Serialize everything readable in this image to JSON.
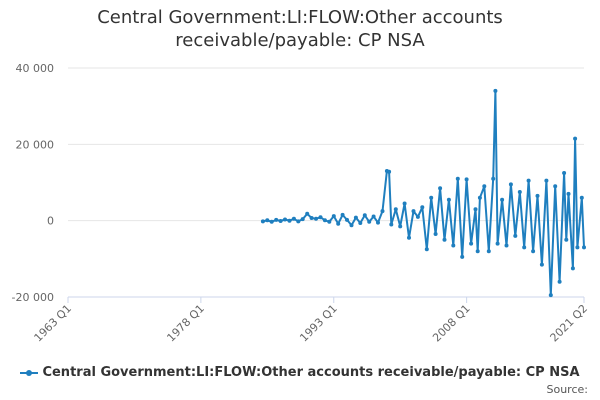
{
  "title_line1": "Central Government:LI:FLOW:Other accounts",
  "title_line2": "receivable/payable: CP NSA",
  "source_label": "Source:",
  "series_color": "#1f7fbf",
  "chart_data": {
    "type": "line",
    "title": "Central Government:LI:FLOW:Other accounts receivable/payable: CP NSA",
    "xlabel": "",
    "ylabel": "",
    "ylim": [
      -20000,
      40000
    ],
    "xlim": [
      "1963 Q1",
      "2021 Q2"
    ],
    "y_ticks": [
      "40 000",
      "20 000",
      "0",
      "-20 000"
    ],
    "y_tick_values": [
      40000,
      20000,
      0,
      -20000
    ],
    "x_ticks": [
      "1963 Q1",
      "1978 Q1",
      "1993 Q1",
      "2008 Q1",
      "2021 Q2"
    ],
    "grid": true,
    "legend_position": "bottom-center",
    "series": [
      {
        "name": "Central Government:LI:FLOW:Other accounts receivable/payable: CP NSA",
        "x": [
          "1985 Q1",
          "1985 Q3",
          "1986 Q1",
          "1986 Q3",
          "1987 Q1",
          "1987 Q3",
          "1988 Q1",
          "1988 Q3",
          "1989 Q1",
          "1989 Q3",
          "1990 Q1",
          "1990 Q3",
          "1991 Q1",
          "1991 Q3",
          "1992 Q1",
          "1992 Q3",
          "1993 Q1",
          "1993 Q3",
          "1994 Q1",
          "1994 Q3",
          "1995 Q1",
          "1995 Q3",
          "1996 Q1",
          "1996 Q3",
          "1997 Q1",
          "1997 Q3",
          "1998 Q1",
          "1998 Q3",
          "1999 Q1",
          "1999 Q2",
          "1999 Q3",
          "2000 Q1",
          "2000 Q3",
          "2001 Q1",
          "2001 Q3",
          "2002 Q1",
          "2002 Q3",
          "2003 Q1",
          "2003 Q3",
          "2004 Q1",
          "2004 Q3",
          "2005 Q1",
          "2005 Q3",
          "2006 Q1",
          "2006 Q3",
          "2007 Q1",
          "2007 Q3",
          "2008 Q1",
          "2008 Q3",
          "2009 Q1",
          "2009 Q2",
          "2009 Q3",
          "2010 Q1",
          "2010 Q3",
          "2011 Q1",
          "2011 Q2",
          "2011 Q3",
          "2012 Q1",
          "2012 Q3",
          "2013 Q1",
          "2013 Q3",
          "2014 Q1",
          "2014 Q3",
          "2015 Q1",
          "2015 Q3",
          "2016 Q1",
          "2016 Q3",
          "2017 Q1",
          "2017 Q3",
          "2018 Q1",
          "2018 Q3",
          "2019 Q1",
          "2019 Q2",
          "2019 Q3",
          "2020 Q1",
          "2020 Q2",
          "2020 Q3",
          "2021 Q1",
          "2021 Q2"
        ],
        "values": [
          -200,
          100,
          -300,
          200,
          -100,
          300,
          0,
          500,
          -200,
          400,
          1800,
          700,
          500,
          900,
          100,
          -300,
          1200,
          -800,
          1500,
          200,
          -1200,
          800,
          -600,
          1400,
          -300,
          1100,
          -500,
          2500,
          13000,
          12800,
          -1000,
          3000,
          -1500,
          4500,
          -4500,
          2500,
          1000,
          3500,
          -7500,
          6000,
          -3500,
          8500,
          -5000,
          5500,
          -6500,
          11000,
          -9500,
          10800,
          -6000,
          3000,
          -8000,
          6000,
          9000,
          -8000,
          11000,
          34000,
          -6000,
          5500,
          -6500,
          9500,
          -4000,
          7500,
          -7000,
          10500,
          -8000,
          6500,
          -11500,
          10500,
          -19500,
          9000,
          -16000,
          12500,
          -5000,
          7000,
          -12500,
          21500,
          -7000,
          6000,
          -7000
        ]
      }
    ]
  }
}
